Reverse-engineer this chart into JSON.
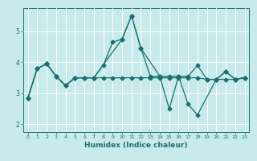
{
  "title": "",
  "xlabel": "Humidex (Indice chaleur)",
  "bg_color": "#c8eaea",
  "line_color": "#1a7070",
  "grid_color": "#ffffff",
  "xlim": [
    -0.5,
    23.5
  ],
  "ylim": [
    1.75,
    5.75
  ],
  "yticks": [
    2,
    3,
    4,
    5
  ],
  "xticks": [
    0,
    1,
    2,
    3,
    4,
    5,
    6,
    7,
    8,
    9,
    10,
    11,
    12,
    13,
    14,
    15,
    16,
    17,
    18,
    19,
    20,
    21,
    22,
    23
  ],
  "line1_x": [
    0,
    1,
    2,
    3,
    4,
    5,
    6,
    7,
    8,
    9,
    10,
    11,
    12,
    13,
    14,
    15,
    16,
    17,
    18,
    19,
    20,
    21,
    22,
    23
  ],
  "line1_y": [
    2.85,
    3.8,
    3.95,
    3.55,
    3.25,
    3.5,
    3.5,
    3.5,
    3.9,
    4.65,
    4.75,
    5.5,
    4.45,
    3.55,
    3.55,
    3.55,
    3.55,
    3.55,
    3.9,
    3.45,
    3.45,
    3.7,
    3.45,
    3.5
  ],
  "line2_x": [
    0,
    1,
    2,
    3,
    4,
    5,
    6,
    7,
    10,
    11,
    12,
    14,
    15,
    16,
    17,
    18,
    20,
    21,
    22,
    23
  ],
  "line2_y": [
    2.85,
    3.8,
    3.95,
    3.55,
    3.25,
    3.5,
    3.5,
    3.5,
    4.75,
    5.5,
    4.45,
    3.55,
    2.5,
    3.55,
    2.65,
    2.3,
    3.45,
    3.7,
    3.45,
    3.5
  ],
  "line3_x": [
    0,
    1,
    2,
    3,
    4,
    5,
    6,
    7,
    8,
    9,
    10,
    11,
    12,
    13,
    14,
    15,
    16,
    17,
    18,
    19,
    20,
    21,
    22,
    23
  ],
  "line3_y": [
    2.85,
    3.8,
    3.95,
    3.55,
    3.25,
    3.5,
    3.5,
    3.5,
    3.5,
    3.5,
    3.5,
    3.5,
    3.5,
    3.5,
    3.5,
    3.5,
    3.5,
    3.5,
    3.5,
    3.45,
    3.45,
    3.45,
    3.45,
    3.5
  ]
}
